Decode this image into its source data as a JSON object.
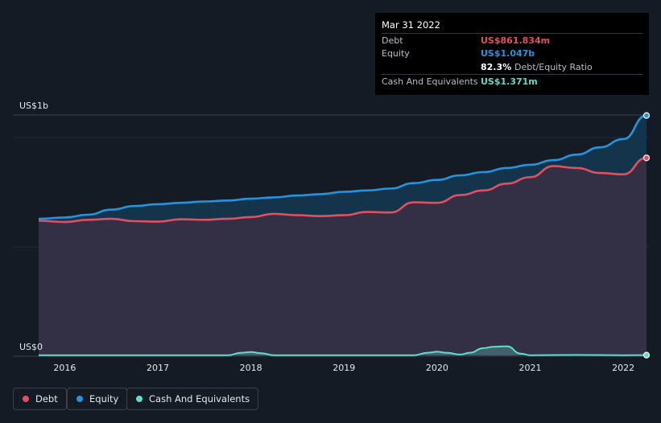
{
  "colors": {
    "debt": "#e2505f",
    "equity": "#2394df",
    "cash": "#5fdccb",
    "background": "#151b24",
    "area_fill": "#362f44",
    "equity_fill": "#14364f"
  },
  "tooltip": {
    "date": "Mar 31 2022",
    "debt_label": "Debt",
    "debt_value": "US$861.834m",
    "equity_label": "Equity",
    "equity_value": "US$1.047b",
    "ratio_value": "82.3%",
    "ratio_label": "Debt/Equity Ratio",
    "cash_label": "Cash And Equivalents",
    "cash_value": "US$1.371m"
  },
  "legend": {
    "debt": "Debt",
    "equity": "Equity",
    "cash": "Cash And Equivalents"
  },
  "chart_data": {
    "type": "area",
    "y_top_label": "US$1b",
    "y_bottom_label": "US$0",
    "ylim": [
      0,
      1000
    ],
    "xlim": [
      2015.72,
      2022.25
    ],
    "x_ticks": [
      "2016",
      "2017",
      "2018",
      "2019",
      "2020",
      "2021",
      "2022"
    ],
    "x_tick_values": [
      2016,
      2017,
      2018,
      2019,
      2020,
      2021,
      2022
    ],
    "series": [
      {
        "name": "Debt",
        "color_key": "debt",
        "x": [
          2015.72,
          2016.0,
          2016.25,
          2016.5,
          2016.75,
          2017.0,
          2017.25,
          2017.5,
          2017.75,
          2018.0,
          2018.25,
          2018.5,
          2018.75,
          2019.0,
          2019.25,
          2019.5,
          2019.75,
          2020.0,
          2020.25,
          2020.5,
          2020.75,
          2021.0,
          2021.25,
          2021.5,
          2021.75,
          2022.0,
          2022.25
        ],
        "values": [
          588,
          582,
          592,
          596,
          586,
          584,
          594,
          592,
          596,
          604,
          618,
          612,
          608,
          612,
          626,
          624,
          668,
          666,
          700,
          720,
          750,
          778,
          826,
          818,
          796,
          790,
          862
        ]
      },
      {
        "name": "Equity",
        "color_key": "equity",
        "x": [
          2015.72,
          2016.0,
          2016.25,
          2016.5,
          2016.75,
          2017.0,
          2017.25,
          2017.5,
          2017.75,
          2018.0,
          2018.25,
          2018.5,
          2018.75,
          2019.0,
          2019.25,
          2019.5,
          2019.75,
          2020.0,
          2020.25,
          2020.5,
          2020.75,
          2021.0,
          2021.25,
          2021.5,
          2021.75,
          2022.0,
          2022.25
        ],
        "values": [
          596,
          602,
          614,
          636,
          652,
          660,
          666,
          672,
          676,
          684,
          690,
          698,
          704,
          714,
          720,
          728,
          752,
          766,
          786,
          800,
          818,
          832,
          852,
          876,
          908,
          944,
          1047
        ]
      },
      {
        "name": "Cash And Equivalents",
        "color_key": "cash",
        "x": [
          2015.72,
          2016.0,
          2016.5,
          2017.0,
          2017.5,
          2017.75,
          2017.9,
          2018.0,
          2018.1,
          2018.25,
          2018.5,
          2019.0,
          2019.5,
          2019.75,
          2019.9,
          2020.0,
          2020.1,
          2020.25,
          2020.35,
          2020.5,
          2020.6,
          2020.75,
          2020.9,
          2021.0,
          2021.5,
          2022.0,
          2022.25
        ],
        "values": [
          1,
          1,
          1,
          1,
          1,
          1,
          12,
          15,
          10,
          1,
          1,
          1,
          1,
          1,
          12,
          16,
          12,
          4,
          12,
          32,
          38,
          40,
          8,
          1,
          2,
          1,
          1.371
        ]
      }
    ],
    "grid": true
  }
}
